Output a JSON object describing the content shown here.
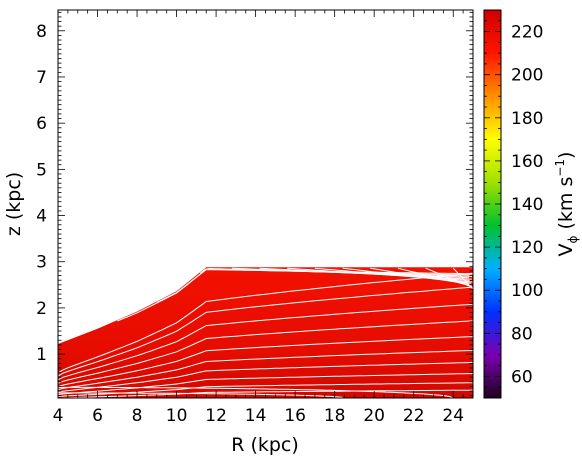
{
  "chart_data": {
    "type": "heatmap",
    "xlabel": "R (kpc)",
    "ylabel": "z (kpc)",
    "colorbar_label": "V",
    "colorbar_label_sub": "ϕ",
    "colorbar_label_unit_open": " (km s",
    "colorbar_label_unit_exp": "−1",
    "colorbar_label_unit_close": ")",
    "xlim": [
      4,
      25
    ],
    "ylim": [
      0.05,
      8.45
    ],
    "xticks": [
      4,
      6,
      8,
      10,
      12,
      14,
      16,
      18,
      20,
      22,
      24
    ],
    "yticks": [
      1,
      2,
      3,
      4,
      5,
      6,
      7,
      8
    ],
    "colorbar_range": [
      50,
      230
    ],
    "colorbar_ticks": [
      60,
      80,
      100,
      120,
      140,
      160,
      180,
      200,
      220
    ],
    "colormap": [
      "#200020",
      "#7a00b0",
      "#0030ff",
      "#00b0ff",
      "#00c030",
      "#a0e000",
      "#ffff00",
      "#ff9000",
      "#ff1500",
      "#d00000"
    ],
    "field_color": "#ee0f00",
    "field_color_dark": "#d50a00",
    "contour_color": "#ffffff",
    "data_region_upper_boundary": [
      {
        "R": 4.0,
        "z": 1.22
      },
      {
        "R": 6.0,
        "z": 1.55
      },
      {
        "R": 8.0,
        "z": 1.92
      },
      {
        "R": 10.0,
        "z": 2.36
      },
      {
        "R": 11.5,
        "z": 2.88
      },
      {
        "R": 25.0,
        "z": 2.88
      }
    ],
    "contour_levels_z_at_R25": [
      0.22,
      0.38,
      0.58,
      0.82,
      1.08,
      1.38,
      1.72,
      2.08,
      2.45,
      2.75
    ],
    "inner_contours_end_R": [
      7.0,
      9.0,
      11.2,
      12.8,
      14.2,
      15.6,
      17.0,
      18.4,
      19.8,
      21.2,
      22.6,
      24.0
    ],
    "lowest_contours": [
      {
        "z_at_R4": 0.16,
        "end_R": 18.5
      },
      {
        "z_at_R4": 0.28,
        "end_R": 24.0
      }
    ]
  }
}
